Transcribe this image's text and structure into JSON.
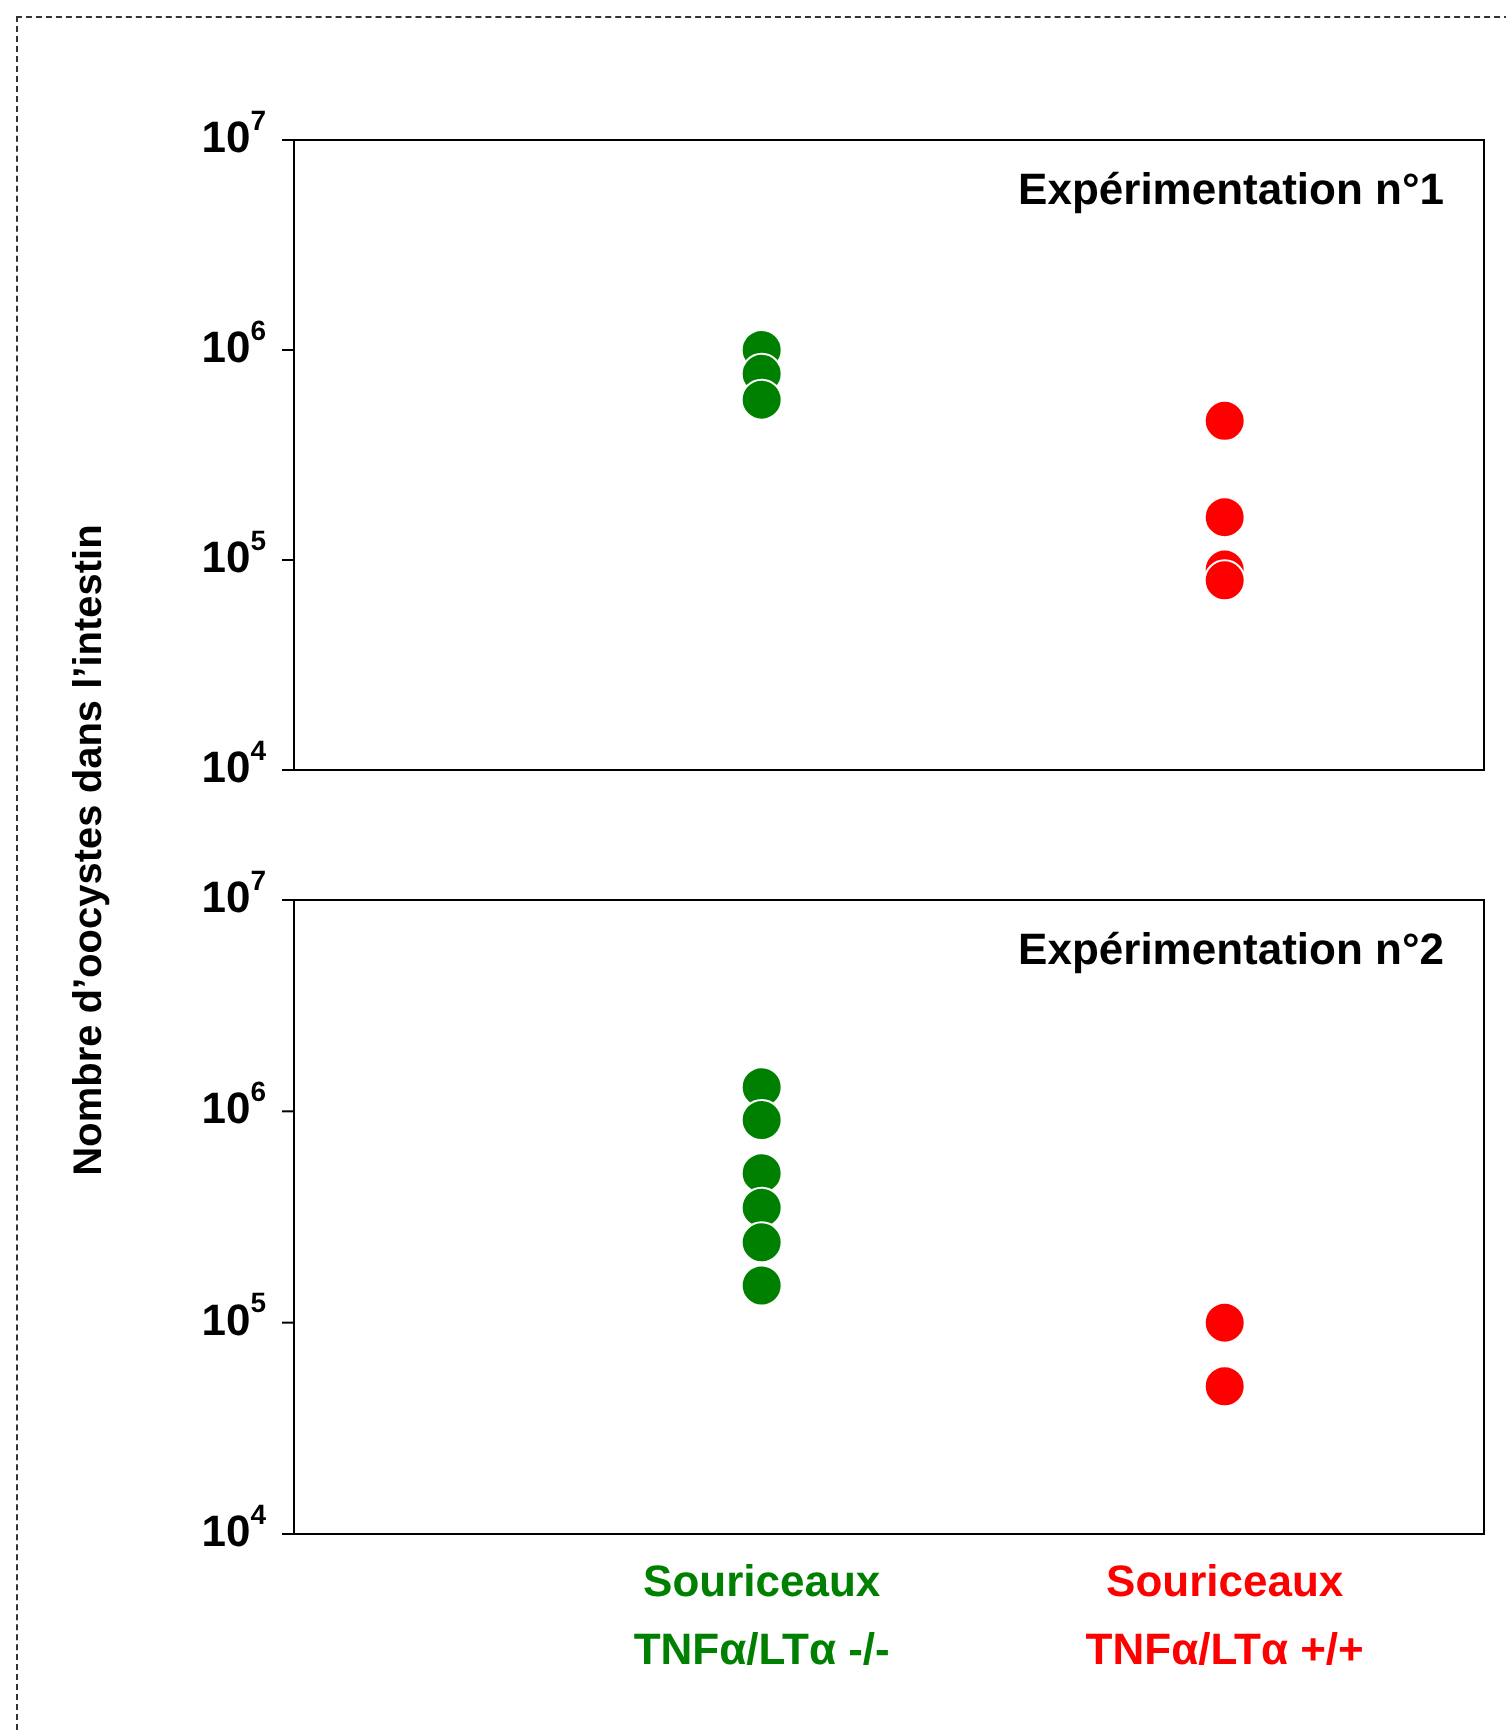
{
  "chart_data": [
    {
      "type": "scatter",
      "ylabel": "Nombre d’oocystes dans l’intestin",
      "annotations": [
        "Expérimentation n°1"
      ],
      "categories": [
        "Souriceaux\nTNFα/LTα -/-",
        "Souriceaux\nTNFα/LTα +/+"
      ],
      "series": [
        {
          "color": "#008000",
          "x": [
            "Souriceaux\nTNFα/LTα -/-",
            "Souriceaux\nTNFα/LTα -/-",
            "Souriceaux\nTNFα/LTα -/-"
          ],
          "values": [
            1000000,
            770000,
            580000
          ]
        },
        {
          "color": "#ff0000",
          "x": [
            "Souriceaux\nTNFα/LTα +/+",
            "Souriceaux\nTNFα/LTα +/+",
            "Souriceaux\nTNFα/LTα +/+",
            "Souriceaux\nTNFα/LTα +/+"
          ],
          "values": [
            460000,
            160000,
            90000,
            80000
          ]
        }
      ],
      "log": true,
      "ylim": [
        10000,
        10000000
      ],
      "yticks": [
        {
          "value": 10000,
          "label": "10$^{4}$"
        },
        {
          "value": 100000,
          "label": "10$^{5}$"
        },
        {
          "value": 1000000,
          "label": "10$^{6}$"
        },
        {
          "value": 10000000,
          "label": "10$^{7}$"
        }
      ],
      "marker": "circle",
      "tick_labels": "y"
    },
    {
      "type": "scatter",
      "annotations": [
        "Expérimentation n°2"
      ],
      "categories": [
        "Souriceaux\nTNFα/LTα -/-",
        "Souriceaux\nTNFα/LTα +/+"
      ],
      "series": [
        {
          "color": "#008000",
          "x": [
            "Souriceaux\nTNFα/LTα -/-",
            "Souriceaux\nTNFα/LTα -/-",
            "Souriceaux\nTNFα/LTα -/-",
            "Souriceaux\nTNFα/LTα -/-",
            "Souriceaux\nTNFα/LTα -/-",
            "Souriceaux\nTNFα/LTα -/-"
          ],
          "values": [
            1300000,
            910000,
            510000,
            350000,
            240000,
            150000
          ]
        },
        {
          "color": "#ff0000",
          "x": [
            "Souriceaux\nTNFα/LTα +/+",
            "Souriceaux\nTNFα/LTα +/+"
          ],
          "values": [
            100000,
            50000
          ]
        }
      ],
      "log": true,
      "ylim": [
        10000,
        10000000
      ],
      "yticks": [
        {
          "value": 10000,
          "label": "10$^{4}$"
        },
        {
          "value": 100000,
          "label": "10$^{5}$"
        },
        {
          "value": 1000000,
          "label": "10$^{6}$"
        },
        {
          "value": 10000000,
          "label": "10$^{7}$"
        }
      ],
      "marker": "circle"
    }
  ]
}
